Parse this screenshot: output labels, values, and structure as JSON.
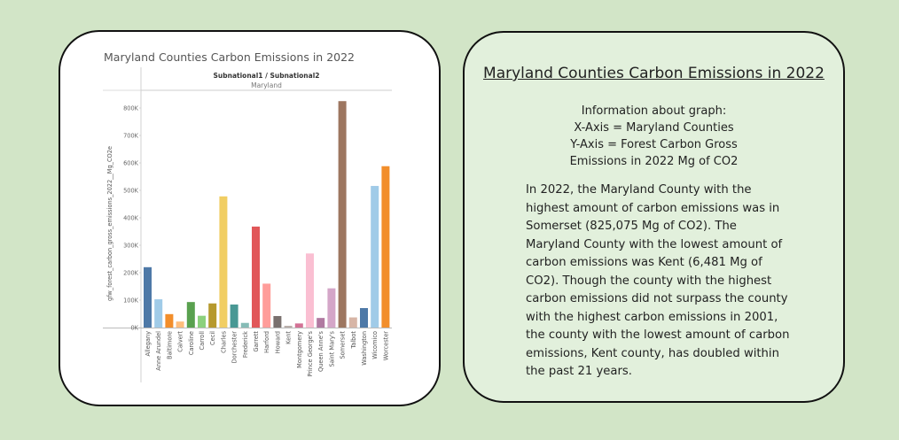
{
  "chart_data": {
    "type": "bar",
    "title": "Maryland Counties Carbon Emissions in 2022",
    "header_top": "Subnational1 / Subnational2",
    "header_sub": "Maryland",
    "ylabel": "gfw_forest_carbon_gross_emissions_2022__Mg_CO2e",
    "ylim": [
      0,
      850000
    ],
    "yticks": [
      0,
      100000,
      200000,
      300000,
      400000,
      500000,
      600000,
      700000,
      800000
    ],
    "ytick_labels": [
      "0K",
      "100K",
      "200K",
      "300K",
      "400K",
      "500K",
      "600K",
      "700K",
      "800K"
    ],
    "grid": false,
    "legend": "none",
    "categories": [
      "Allegany",
      "Anne Arundel",
      "Baltimore",
      "Calvert",
      "Caroline",
      "Carroll",
      "Cecil",
      "Charles",
      "Dorchester",
      "Frederick",
      "Garrett",
      "Harford",
      "Howard",
      "Kent",
      "Montgomery",
      "Prince George's",
      "Queen Anne's",
      "Saint Mary's",
      "Somerset",
      "Talbot",
      "Washington",
      "Wicomico",
      "Worcester"
    ],
    "values": [
      220000,
      103000,
      49000,
      22000,
      93000,
      43000,
      88000,
      478000,
      84000,
      17000,
      368000,
      160000,
      42000,
      6481,
      15000,
      270000,
      35000,
      143000,
      825075,
      37000,
      71000,
      516000,
      588000
    ],
    "colors": [
      "#4e79a7",
      "#a0cbe8",
      "#f28e2b",
      "#ffbe7d",
      "#59a14f",
      "#8cd17d",
      "#b6992d",
      "#f1ce63",
      "#499894",
      "#86bcb6",
      "#e15759",
      "#ff9d9a",
      "#79706e",
      "#bab0ac",
      "#d37295",
      "#fabfd2",
      "#b07aa1",
      "#d4a6c8",
      "#9d7660",
      "#d7b5a6",
      "#4e79a7",
      "#a0cbe8",
      "#f28e2b"
    ]
  },
  "panel": {
    "title": "Maryland Counties Carbon Emissions in 2022",
    "info_heading": "Information about graph:",
    "info_x": "X-Axis = Maryland Counties",
    "info_y1": "Y-Axis = Forest Carbon Gross",
    "info_y2": "Emissions in 2022 Mg of CO2",
    "summary": "In 2022, the Maryland County with the highest amount of carbon emissions was in Somerset (825,075 Mg of CO2). The Maryland County with the lowest amount of carbon emissions was Kent (6,481 Mg of CO2). Though the county with the highest carbon emissions did not surpass the county with the highest carbon emissions in 2001, the county with the lowest amount of carbon emissions, Kent county, has doubled within the past 21 years."
  }
}
